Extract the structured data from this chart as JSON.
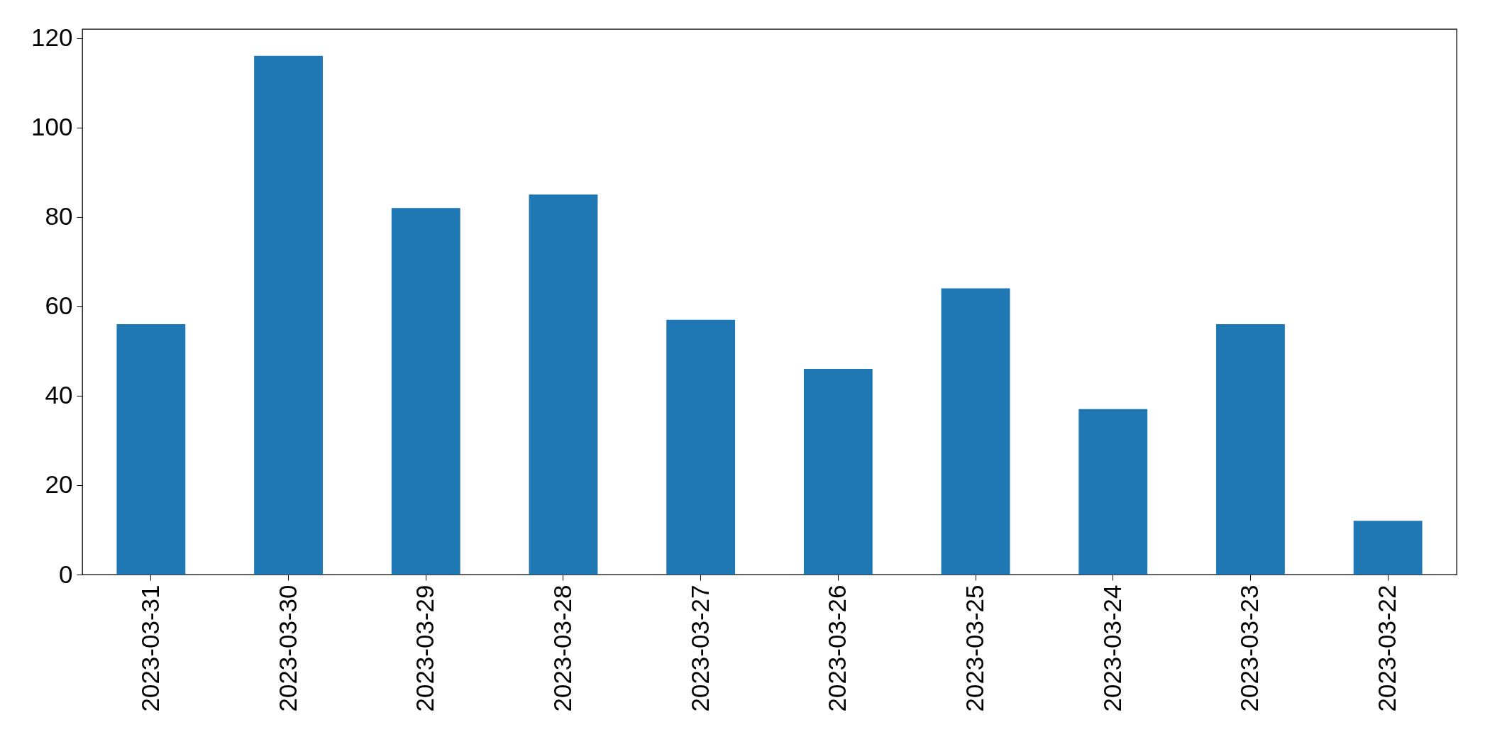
{
  "chart_data": {
    "type": "bar",
    "categories": [
      "2023-03-31",
      "2023-03-30",
      "2023-03-29",
      "2023-03-28",
      "2023-03-27",
      "2023-03-26",
      "2023-03-25",
      "2023-03-24",
      "2023-03-23",
      "2023-03-22"
    ],
    "values": [
      56,
      116,
      82,
      85,
      57,
      46,
      64,
      37,
      56,
      12
    ],
    "color": "#1f77b4",
    "ylim": [
      0,
      122
    ],
    "yticks": [
      0,
      20,
      40,
      60,
      80,
      100,
      120
    ],
    "grid": false
  }
}
